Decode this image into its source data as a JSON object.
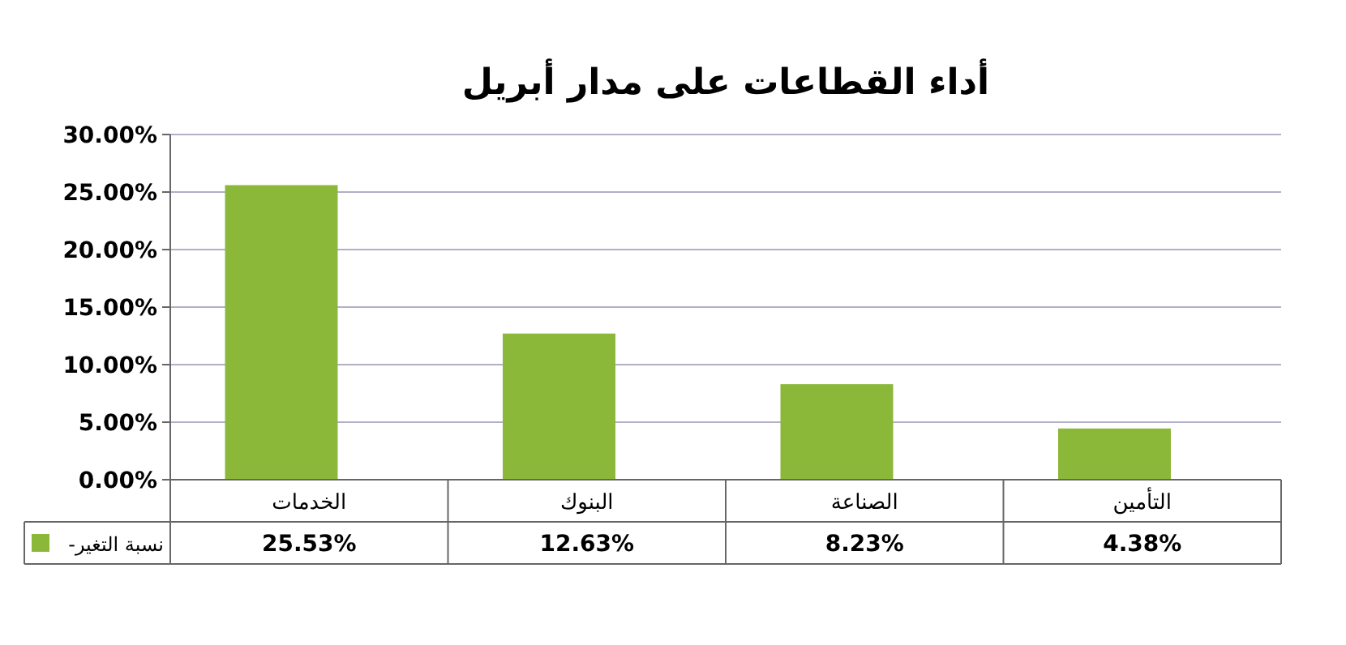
{
  "chart_data": {
    "type": "bar",
    "title": "أداء القطاعات على مدار أبريل",
    "categories": [
      "الخدمات",
      "البنوك",
      "الصناعة",
      "التأمين"
    ],
    "series": [
      {
        "name": "نسبة التغير-",
        "color": "#8cb83a",
        "values": [
          25.53,
          12.63,
          8.23,
          4.38
        ],
        "value_labels": [
          "25.53%",
          "12.63%",
          "8.23%",
          "4.38%"
        ]
      }
    ],
    "ylim": [
      0,
      30
    ],
    "yticks": [
      {
        "value": 0,
        "label": "0.00%"
      },
      {
        "value": 5,
        "label": "5.00%"
      },
      {
        "value": 10,
        "label": "10.00%"
      },
      {
        "value": 15,
        "label": "15.00%"
      },
      {
        "value": 20,
        "label": "20.00%"
      },
      {
        "value": 25,
        "label": "25.00%"
      },
      {
        "value": 30,
        "label": "30.00%"
      }
    ],
    "grid": "y",
    "legend": "bottom left"
  }
}
